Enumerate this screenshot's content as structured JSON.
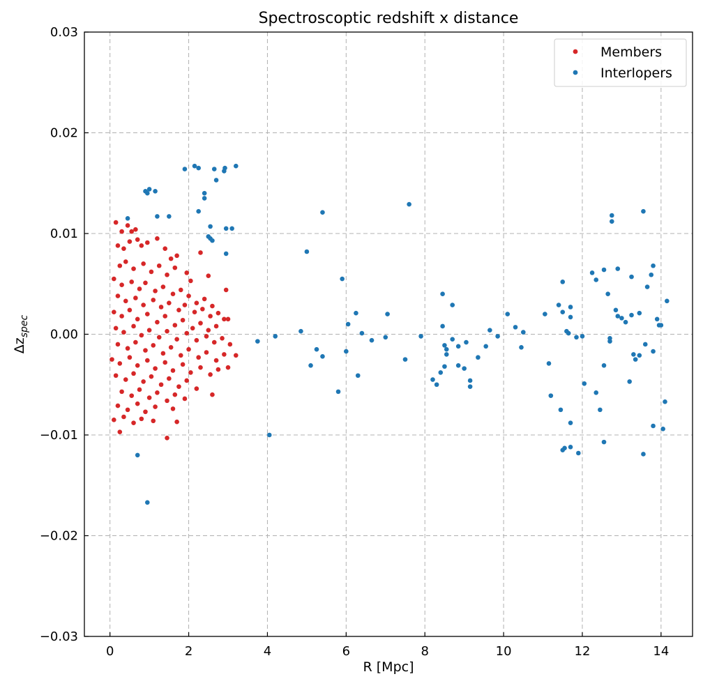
{
  "chart_data": {
    "type": "scatter",
    "title": "Spectroscoptic redshift x distance",
    "xlabel": "R [Mpc]",
    "ylabel": "Δz_spec",
    "ylabel_main": "Δz",
    "ylabel_sub": "spec",
    "xlim": [
      -0.65,
      14.8
    ],
    "ylim": [
      -0.03,
      0.03
    ],
    "xticks": [
      0,
      2,
      4,
      6,
      8,
      10,
      12,
      14
    ],
    "xtick_labels": [
      "0",
      "2",
      "4",
      "6",
      "8",
      "10",
      "12",
      "14"
    ],
    "yticks": [
      -0.03,
      -0.02,
      -0.01,
      0.0,
      0.01,
      0.02,
      0.03
    ],
    "ytick_labels": [
      "−0.03",
      "−0.02",
      "−0.01",
      "0.00",
      "0.01",
      "0.02",
      "0.03"
    ],
    "grid": true,
    "legend_position": "top-right",
    "series": [
      {
        "name": "Members",
        "color": "#d62728",
        "points": [
          [
            0.15,
            0.0111
          ],
          [
            0.3,
            0.0102
          ],
          [
            0.45,
            0.0108
          ],
          [
            0.55,
            0.0102
          ],
          [
            0.65,
            0.0104
          ],
          [
            0.2,
            0.0088
          ],
          [
            0.35,
            0.0085
          ],
          [
            0.5,
            0.0092
          ],
          [
            0.7,
            0.0094
          ],
          [
            0.8,
            0.0088
          ],
          [
            0.95,
            0.0091
          ],
          [
            1.2,
            0.0095
          ],
          [
            1.4,
            0.0085
          ],
          [
            1.55,
            0.0075
          ],
          [
            1.7,
            0.0078
          ],
          [
            0.25,
            0.0068
          ],
          [
            0.4,
            0.0072
          ],
          [
            0.6,
            0.0065
          ],
          [
            0.85,
            0.007
          ],
          [
            1.05,
            0.0062
          ],
          [
            1.25,
            0.0068
          ],
          [
            1.45,
            0.0059
          ],
          [
            1.65,
            0.0066
          ],
          [
            1.95,
            0.0061
          ],
          [
            2.05,
            0.0053
          ],
          [
            2.3,
            0.0081
          ],
          [
            2.5,
            0.0058
          ],
          [
            0.1,
            0.0055
          ],
          [
            0.3,
            0.0049
          ],
          [
            0.55,
            0.0052
          ],
          [
            0.75,
            0.0045
          ],
          [
            0.9,
            0.0051
          ],
          [
            1.15,
            0.0043
          ],
          [
            1.35,
            0.0047
          ],
          [
            1.6,
            0.004
          ],
          [
            1.8,
            0.0044
          ],
          [
            2.0,
            0.0038
          ],
          [
            2.2,
            0.0031
          ],
          [
            2.4,
            0.0035
          ],
          [
            2.6,
            0.0028
          ],
          [
            2.95,
            0.0044
          ],
          [
            0.2,
            0.0038
          ],
          [
            0.4,
            0.0033
          ],
          [
            0.65,
            0.0036
          ],
          [
            0.85,
            0.0029
          ],
          [
            1.1,
            0.0034
          ],
          [
            1.3,
            0.0027
          ],
          [
            1.5,
            0.0031
          ],
          [
            1.75,
            0.0024
          ],
          [
            1.9,
            0.0029
          ],
          [
            2.15,
            0.0022
          ],
          [
            2.35,
            0.0025
          ],
          [
            2.55,
            0.0018
          ],
          [
            2.75,
            0.0021
          ],
          [
            2.9,
            0.0015
          ],
          [
            3.0,
            0.0015
          ],
          [
            0.1,
            0.0022
          ],
          [
            0.3,
            0.0018
          ],
          [
            0.5,
            0.0024
          ],
          [
            0.7,
            0.0015
          ],
          [
            0.95,
            0.002
          ],
          [
            1.2,
            0.0012
          ],
          [
            1.4,
            0.0018
          ],
          [
            1.65,
            0.0009
          ],
          [
            1.85,
            0.0014
          ],
          [
            2.1,
            0.0006
          ],
          [
            2.3,
            0.0011
          ],
          [
            2.5,
            0.0004
          ],
          [
            2.7,
            0.0008
          ],
          [
            0.15,
            0.0006
          ],
          [
            0.35,
            0.0002
          ],
          [
            0.6,
            0.0008
          ],
          [
            0.8,
            -0.0001
          ],
          [
            1.0,
            0.0004
          ],
          [
            1.25,
            -0.0003
          ],
          [
            1.45,
            0.0003
          ],
          [
            1.7,
            -0.0005
          ],
          [
            1.95,
            0.0001
          ],
          [
            2.2,
            -0.0006
          ],
          [
            2.45,
            -0.0002
          ],
          [
            2.65,
            -0.0008
          ],
          [
            2.85,
            -0.0004
          ],
          [
            3.05,
            -0.001
          ],
          [
            0.2,
            -0.001
          ],
          [
            0.45,
            -0.0014
          ],
          [
            0.65,
            -0.0008
          ],
          [
            0.9,
            -0.0016
          ],
          [
            1.1,
            -0.0011
          ],
          [
            1.35,
            -0.0019
          ],
          [
            1.55,
            -0.0013
          ],
          [
            1.8,
            -0.0021
          ],
          [
            2.0,
            -0.0015
          ],
          [
            2.25,
            -0.0023
          ],
          [
            2.45,
            -0.0018
          ],
          [
            2.7,
            -0.0026
          ],
          [
            2.9,
            -0.002
          ],
          [
            3.2,
            -0.0021
          ],
          [
            0.05,
            -0.0025
          ],
          [
            0.25,
            -0.0029
          ],
          [
            0.5,
            -0.0023
          ],
          [
            0.7,
            -0.0031
          ],
          [
            0.95,
            -0.0026
          ],
          [
            1.15,
            -0.0034
          ],
          [
            1.4,
            -0.0028
          ],
          [
            1.6,
            -0.0036
          ],
          [
            1.85,
            -0.003
          ],
          [
            2.05,
            -0.0038
          ],
          [
            2.3,
            -0.0033
          ],
          [
            2.55,
            -0.004
          ],
          [
            2.75,
            -0.0035
          ],
          [
            3.0,
            -0.0033
          ],
          [
            0.15,
            -0.0041
          ],
          [
            0.4,
            -0.0045
          ],
          [
            0.6,
            -0.0039
          ],
          [
            0.85,
            -0.0047
          ],
          [
            1.05,
            -0.0042
          ],
          [
            1.3,
            -0.005
          ],
          [
            1.5,
            -0.0044
          ],
          [
            1.75,
            -0.0052
          ],
          [
            1.95,
            -0.0046
          ],
          [
            2.2,
            -0.0054
          ],
          [
            0.3,
            -0.0057
          ],
          [
            0.55,
            -0.0061
          ],
          [
            0.75,
            -0.0055
          ],
          [
            1.0,
            -0.0063
          ],
          [
            1.2,
            -0.0058
          ],
          [
            1.45,
            -0.0066
          ],
          [
            1.65,
            -0.006
          ],
          [
            1.9,
            -0.0064
          ],
          [
            2.6,
            -0.006
          ],
          [
            0.2,
            -0.0071
          ],
          [
            0.45,
            -0.0075
          ],
          [
            0.7,
            -0.0069
          ],
          [
            0.9,
            -0.0077
          ],
          [
            1.15,
            -0.0072
          ],
          [
            1.6,
            -0.0074
          ],
          [
            0.1,
            -0.0085
          ],
          [
            0.35,
            -0.0082
          ],
          [
            0.6,
            -0.0088
          ],
          [
            0.8,
            -0.0084
          ],
          [
            1.1,
            -0.0086
          ],
          [
            1.7,
            -0.0087
          ],
          [
            0.25,
            -0.0097
          ],
          [
            1.45,
            -0.0103
          ]
        ]
      },
      {
        "name": "Interlopers",
        "color": "#1f77b4",
        "points": [
          [
            0.9,
            0.0142
          ],
          [
            1.0,
            0.0144
          ],
          [
            0.95,
            0.014
          ],
          [
            1.15,
            0.0142
          ],
          [
            1.2,
            0.0117
          ],
          [
            1.5,
            0.0117
          ],
          [
            0.45,
            0.0115
          ],
          [
            1.9,
            0.0164
          ],
          [
            2.15,
            0.0167
          ],
          [
            2.25,
            0.0165
          ],
          [
            2.65,
            0.0164
          ],
          [
            2.9,
            0.0162
          ],
          [
            2.92,
            0.0165
          ],
          [
            3.2,
            0.0167
          ],
          [
            2.7,
            0.0153
          ],
          [
            2.4,
            0.014
          ],
          [
            2.4,
            0.0135
          ],
          [
            2.25,
            0.0122
          ],
          [
            2.55,
            0.0107
          ],
          [
            2.95,
            0.0105
          ],
          [
            3.1,
            0.0105
          ],
          [
            2.5,
            0.0097
          ],
          [
            2.55,
            0.0095
          ],
          [
            2.6,
            0.0093
          ],
          [
            2.95,
            0.008
          ],
          [
            0.7,
            -0.012
          ],
          [
            0.95,
            -0.0167
          ],
          [
            3.75,
            -0.0007
          ],
          [
            4.2,
            -0.0002
          ],
          [
            4.05,
            -0.01
          ],
          [
            4.85,
            0.0003
          ],
          [
            5.0,
            0.0082
          ],
          [
            5.1,
            -0.0031
          ],
          [
            5.25,
            -0.0015
          ],
          [
            5.4,
            -0.0022
          ],
          [
            5.4,
            0.0121
          ],
          [
            5.8,
            -0.0057
          ],
          [
            5.9,
            0.0055
          ],
          [
            6.0,
            -0.0017
          ],
          [
            6.05,
            0.001
          ],
          [
            6.25,
            0.0021
          ],
          [
            6.3,
            -0.0041
          ],
          [
            6.4,
            0.0001
          ],
          [
            6.65,
            -0.0006
          ],
          [
            7.0,
            -0.0003
          ],
          [
            7.05,
            0.002
          ],
          [
            7.5,
            -0.0025
          ],
          [
            7.6,
            0.0129
          ],
          [
            7.9,
            -0.0002
          ],
          [
            8.2,
            -0.0045
          ],
          [
            8.3,
            -0.005
          ],
          [
            8.4,
            -0.0038
          ],
          [
            8.45,
            0.004
          ],
          [
            8.45,
            0.0008
          ],
          [
            8.5,
            -0.0032
          ],
          [
            8.5,
            -0.0011
          ],
          [
            8.55,
            -0.0015
          ],
          [
            8.55,
            -0.002
          ],
          [
            8.7,
            -0.0005
          ],
          [
            8.7,
            0.0029
          ],
          [
            8.85,
            -0.0012
          ],
          [
            8.85,
            -0.0031
          ],
          [
            9.0,
            -0.0034
          ],
          [
            9.05,
            -0.0008
          ],
          [
            9.15,
            -0.0052
          ],
          [
            9.15,
            -0.0046
          ],
          [
            9.35,
            -0.0023
          ],
          [
            9.55,
            -0.0012
          ],
          [
            9.65,
            0.0004
          ],
          [
            9.85,
            -0.0002
          ],
          [
            10.1,
            0.002
          ],
          [
            10.3,
            0.0007
          ],
          [
            10.45,
            -0.0013
          ],
          [
            10.5,
            0.0002
          ],
          [
            11.05,
            0.002
          ],
          [
            11.15,
            -0.0029
          ],
          [
            11.2,
            -0.0061
          ],
          [
            11.4,
            0.0029
          ],
          [
            11.45,
            -0.0075
          ],
          [
            11.5,
            0.0052
          ],
          [
            11.5,
            0.0022
          ],
          [
            11.5,
            -0.0115
          ],
          [
            11.55,
            -0.0113
          ],
          [
            11.6,
            0.0003
          ],
          [
            11.65,
            0.0001
          ],
          [
            11.7,
            0.0027
          ],
          [
            11.7,
            0.0017
          ],
          [
            11.7,
            -0.0088
          ],
          [
            11.7,
            -0.0112
          ],
          [
            11.85,
            -0.0003
          ],
          [
            11.9,
            -0.0118
          ],
          [
            12.0,
            -0.0002
          ],
          [
            12.05,
            -0.0049
          ],
          [
            12.25,
            0.0061
          ],
          [
            12.35,
            0.0054
          ],
          [
            12.35,
            -0.0058
          ],
          [
            12.45,
            -0.0075
          ],
          [
            12.55,
            0.0064
          ],
          [
            12.55,
            -0.0031
          ],
          [
            12.55,
            -0.0107
          ],
          [
            12.65,
            0.004
          ],
          [
            12.7,
            -0.0004
          ],
          [
            12.7,
            -0.0007
          ],
          [
            12.75,
            0.0118
          ],
          [
            12.75,
            0.0112
          ],
          [
            12.85,
            0.0024
          ],
          [
            12.9,
            0.0018
          ],
          [
            12.9,
            0.0065
          ],
          [
            13.0,
            0.0016
          ],
          [
            13.1,
            0.0012
          ],
          [
            13.2,
            -0.0047
          ],
          [
            13.25,
            0.0057
          ],
          [
            13.25,
            0.0019
          ],
          [
            13.3,
            -0.002
          ],
          [
            13.35,
            -0.0025
          ],
          [
            13.45,
            0.0021
          ],
          [
            13.45,
            -0.0021
          ],
          [
            13.55,
            0.0122
          ],
          [
            13.55,
            -0.0119
          ],
          [
            13.6,
            -0.001
          ],
          [
            13.65,
            0.0047
          ],
          [
            13.75,
            0.0059
          ],
          [
            13.8,
            0.0068
          ],
          [
            13.8,
            -0.0017
          ],
          [
            13.8,
            -0.0091
          ],
          [
            13.9,
            0.0015
          ],
          [
            13.95,
            0.0009
          ],
          [
            14.0,
            0.0009
          ],
          [
            14.05,
            -0.0094
          ],
          [
            14.1,
            -0.0067
          ],
          [
            14.15,
            0.0033
          ]
        ]
      }
    ]
  }
}
